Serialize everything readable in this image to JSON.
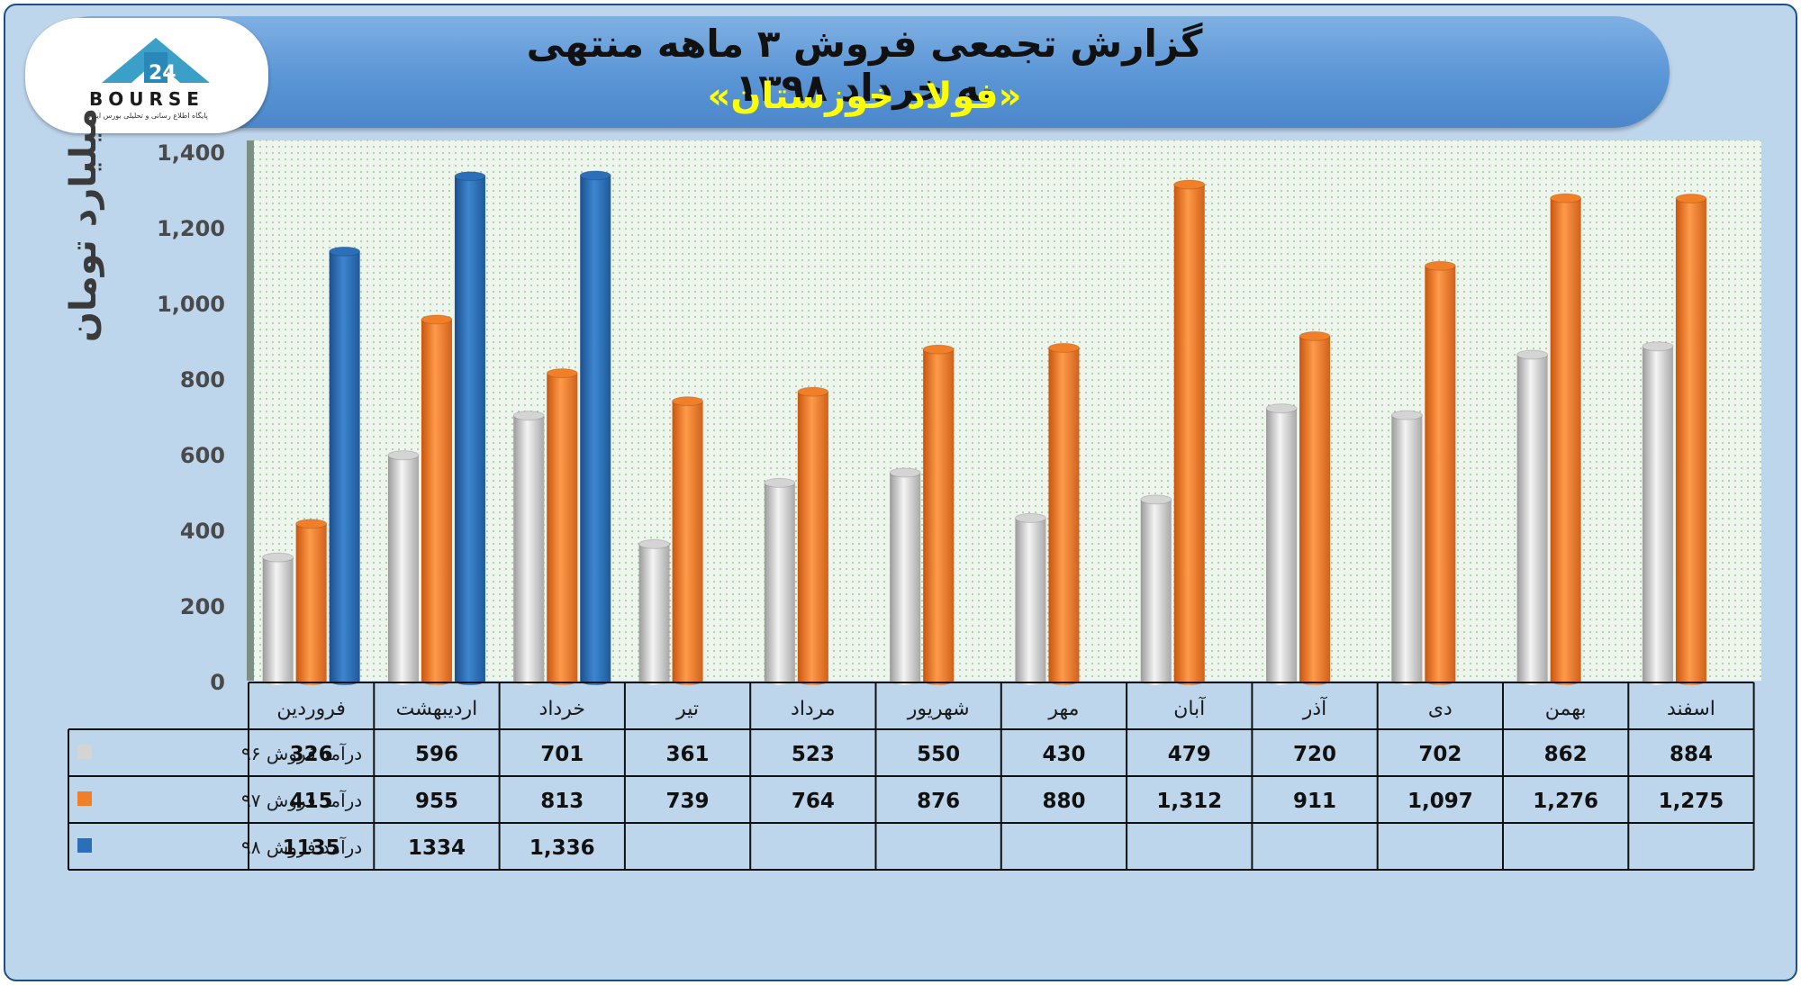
{
  "header": {
    "title": "گزارش تجمعی فروش ۳ ماهه منتهی به خرداد ۱۳۹۸",
    "subtitle": "«فولاد خوزستان»"
  },
  "logo": {
    "text": "BOURSE",
    "tagline": "پایگاه اطلاع رسانی و تحلیلی بورس ایران"
  },
  "chart_data": {
    "type": "bar",
    "ylabel": "میلیارد تومان",
    "ylim": [
      0,
      1400
    ],
    "yticks": [
      "0",
      "200",
      "400",
      "600",
      "800",
      "1,000",
      "1,200",
      "1,400"
    ],
    "grid": false,
    "legend": "table-left",
    "categories": [
      "فروردین",
      "اردیبهشت",
      "خرداد",
      "تیر",
      "مرداد",
      "شهریور",
      "مهر",
      "آبان",
      "آذر",
      "دی",
      "بهمن",
      "اسفند"
    ],
    "series": [
      {
        "name": "درآمد فروش ۹۶",
        "color": "#d4d4d4",
        "values": [
          326,
          596,
          701,
          361,
          523,
          550,
          430,
          479,
          720,
          702,
          862,
          884
        ],
        "labels": [
          "326",
          "596",
          "701",
          "361",
          "523",
          "550",
          "430",
          "479",
          "720",
          "702",
          "862",
          "884"
        ]
      },
      {
        "name": "درآمد فروش ۹۷",
        "color": "#f07f28",
        "values": [
          415,
          955,
          813,
          739,
          764,
          876,
          880,
          1312,
          911,
          1097,
          1276,
          1275
        ],
        "labels": [
          "415",
          "955",
          "813",
          "739",
          "764",
          "876",
          "880",
          "1,312",
          "911",
          "1,097",
          "1,276",
          "1,275"
        ]
      },
      {
        "name": "درآمد فروش ۹۸",
        "color": "#2a6fb8",
        "values": [
          1135,
          1334,
          1336,
          null,
          null,
          null,
          null,
          null,
          null,
          null,
          null,
          null
        ],
        "labels": [
          "1135",
          "1334",
          "1,336",
          "",
          "",
          "",
          "",
          "",
          "",
          "",
          "",
          ""
        ]
      }
    ]
  }
}
